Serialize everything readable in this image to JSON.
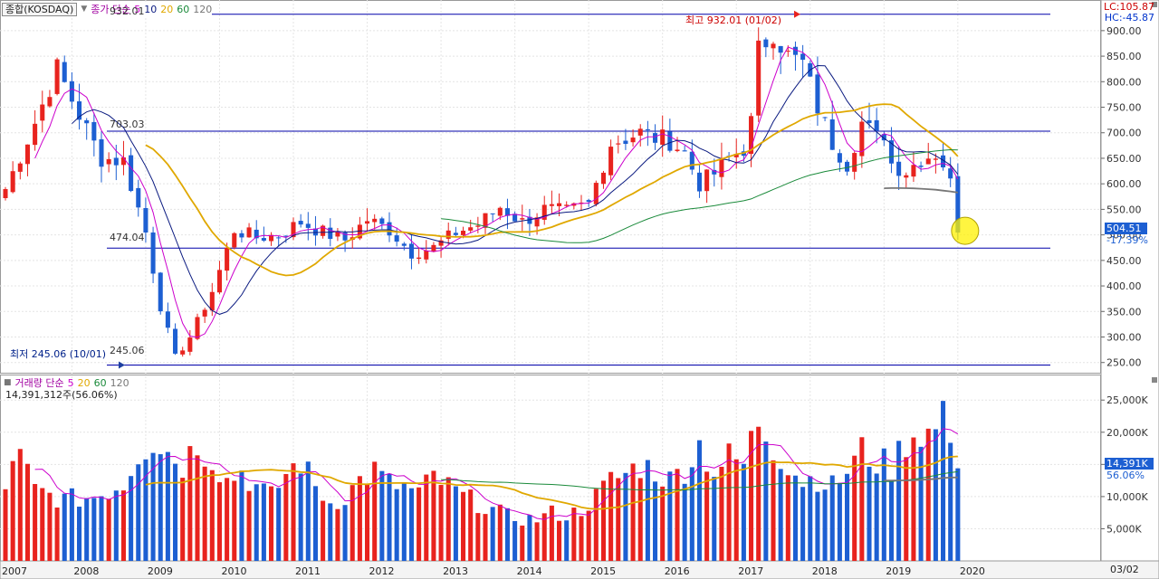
{
  "header": {
    "symbol_chip": "종합(KOSDAQ)",
    "legend_main_label": "종가 단순",
    "legend_main_periods": [
      "5",
      "10",
      "20",
      "60",
      "120"
    ],
    "lc": "LC:105.87",
    "hc": "HC:-45.87"
  },
  "volume_header": {
    "label": "거래량 단순",
    "periods": [
      "5",
      "20",
      "60",
      "120"
    ],
    "current": "14,391,312주(56.06%)"
  },
  "price_panel": {
    "high_note": "최고 932.01 (01/02)",
    "low_note": "최저 245.06 (10/01)",
    "line_932": "932.01",
    "line_703": "703.03",
    "line_474": "474.04",
    "line_245": "245.06",
    "current_price": "504.51",
    "current_change": "-17.39%"
  },
  "volume_panel": {
    "current_volume": "14,391K",
    "current_ratio": "56.06%"
  },
  "x_axis": {
    "labels": [
      "2007",
      "2008",
      "2009",
      "2010",
      "2011",
      "2012",
      "2013",
      "2014",
      "2015",
      "2016",
      "2017",
      "2018",
      "2019",
      "2020"
    ],
    "last_date": "03/02"
  },
  "colors": {
    "up": "#e8231e",
    "down": "#1d5fd2",
    "ma5": "#cc00cc",
    "ma10": "#0a1a80",
    "ma20": "#e0a800",
    "ma60": "#1a8a3a",
    "ma120": "#777777",
    "hline": "#0000aa"
  },
  "chart_data": [
    {
      "type": "candlestick",
      "title": "종합(KOSDAQ)",
      "ylim": [
        230,
        960
      ],
      "yticks": [
        250,
        300,
        350,
        400,
        450,
        500,
        550,
        600,
        650,
        700,
        750,
        800,
        850,
        900
      ],
      "horizontal_lines": [
        932.01,
        703.03,
        474.04,
        245.06
      ],
      "high": {
        "value": 932.01,
        "date": "01/02"
      },
      "low": {
        "value": 245.06,
        "date": "10/01"
      },
      "last": {
        "value": 504.51,
        "change": "-17.39%"
      },
      "period_start": "2007",
      "interval": "monthly",
      "close_path": [
        [
          0,
          590
        ],
        [
          4,
          720
        ],
        [
          7,
          825
        ],
        [
          10,
          735
        ],
        [
          13,
          650
        ],
        [
          16,
          645
        ],
        [
          19,
          505
        ],
        [
          21,
          360
        ],
        [
          23,
          260
        ],
        [
          25,
          300
        ],
        [
          28,
          390
        ],
        [
          31,
          510
        ],
        [
          34,
          495
        ],
        [
          37,
          500
        ],
        [
          40,
          525
        ],
        [
          43,
          505
        ],
        [
          46,
          490
        ],
        [
          49,
          530
        ],
        [
          52,
          510
        ],
        [
          55,
          465
        ],
        [
          58,
          475
        ],
        [
          61,
          505
        ],
        [
          64,
          520
        ],
        [
          67,
          555
        ],
        [
          70,
          525
        ],
        [
          73,
          550
        ],
        [
          76,
          545
        ],
        [
          79,
          560
        ],
        [
          80,
          600
        ],
        [
          82,
          680
        ],
        [
          84,
          690
        ],
        [
          86,
          700
        ],
        [
          88,
          690
        ],
        [
          90,
          685
        ],
        [
          92,
          660
        ],
        [
          94,
          600
        ],
        [
          96,
          620
        ],
        [
          98,
          650
        ],
        [
          100,
          670
        ],
        [
          101,
          720
        ],
        [
          102,
          860
        ],
        [
          104,
          900
        ],
        [
          106,
          850
        ],
        [
          108,
          835
        ],
        [
          110,
          750
        ],
        [
          112,
          680
        ],
        [
          114,
          640
        ],
        [
          116,
          720
        ],
        [
          118,
          690
        ],
        [
          119,
          700
        ],
        [
          120,
          640
        ],
        [
          122,
          625
        ],
        [
          124,
          650
        ],
        [
          126,
          660
        ],
        [
          127,
          640
        ],
        [
          128,
          600
        ],
        [
          129,
          504.51
        ]
      ],
      "ma_periods": [
        5,
        10,
        20,
        60,
        120
      ]
    },
    {
      "type": "bar",
      "title": "거래량",
      "ylim": [
        0,
        27000
      ],
      "yticks": [
        5000,
        10000,
        15000,
        20000,
        25000
      ],
      "ytick_labels": [
        "5,000K",
        "10,000K",
        "15,000K",
        "20,000K",
        "25,000K"
      ],
      "last": {
        "value": 14391,
        "ratio": "56.06%"
      },
      "volume_path": [
        [
          0,
          12000
        ],
        [
          2,
          16000
        ],
        [
          4,
          11000
        ],
        [
          8,
          9500
        ],
        [
          12,
          10000
        ],
        [
          16,
          12000
        ],
        [
          18,
          17000
        ],
        [
          20,
          19000
        ],
        [
          22,
          17000
        ],
        [
          24,
          15000
        ],
        [
          26,
          18500
        ],
        [
          28,
          16000
        ],
        [
          30,
          12500
        ],
        [
          32,
          14000
        ],
        [
          34,
          11500
        ],
        [
          36,
          10000
        ],
        [
          38,
          13500
        ],
        [
          40,
          15500
        ],
        [
          42,
          11500
        ],
        [
          44,
          9000
        ],
        [
          46,
          10000
        ],
        [
          48,
          12500
        ],
        [
          50,
          14000
        ],
        [
          52,
          12000
        ],
        [
          54,
          11500
        ],
        [
          56,
          10500
        ],
        [
          58,
          13000
        ],
        [
          60,
          11500
        ],
        [
          62,
          10000
        ],
        [
          64,
          9000
        ],
        [
          66,
          8000
        ],
        [
          68,
          7000
        ],
        [
          70,
          6500
        ],
        [
          72,
          6500
        ],
        [
          74,
          7500
        ],
        [
          76,
          7000
        ],
        [
          78,
          8000
        ],
        [
          80,
          10000
        ],
        [
          82,
          12500
        ],
        [
          84,
          13500
        ],
        [
          86,
          15000
        ],
        [
          88,
          14000
        ],
        [
          90,
          12500
        ],
        [
          92,
          14500
        ],
        [
          94,
          18000
        ],
        [
          96,
          14000
        ],
        [
          98,
          16000
        ],
        [
          100,
          15000
        ],
        [
          102,
          22000
        ],
        [
          104,
          18000
        ],
        [
          106,
          15000
        ],
        [
          108,
          12500
        ],
        [
          110,
          13000
        ],
        [
          112,
          11500
        ],
        [
          114,
          14000
        ],
        [
          116,
          17000
        ],
        [
          118,
          15500
        ],
        [
          120,
          14500
        ],
        [
          122,
          19000
        ],
        [
          124,
          20500
        ],
        [
          126,
          19500
        ],
        [
          127,
          25500
        ],
        [
          128,
          16000
        ],
        [
          129,
          14391
        ]
      ]
    }
  ]
}
